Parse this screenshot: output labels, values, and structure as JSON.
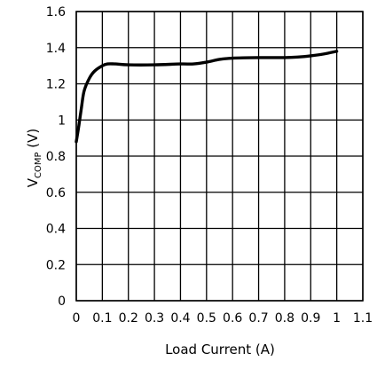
{
  "chart_data": {
    "type": "line",
    "title": "",
    "xlabel": "Load Current (A)",
    "ylabel": {
      "main": "V",
      "subscript": "COMP",
      "unit": " (V)"
    },
    "xlim": [
      0,
      1.1
    ],
    "ylim": [
      0,
      1.6
    ],
    "xticks": [
      0,
      0.1,
      0.2,
      0.3,
      0.4,
      0.5,
      0.6,
      0.7,
      0.8,
      0.9,
      1.0,
      1.1
    ],
    "xtick_labels": [
      "0",
      "0.1",
      "0.2",
      "0.3",
      "0.4",
      "0.5",
      "0.6",
      "0.7",
      "0.8",
      "0.9",
      "1",
      "1.1"
    ],
    "yticks": [
      0,
      0.2,
      0.4,
      0.6,
      0.8,
      1.0,
      1.2,
      1.4,
      1.6
    ],
    "ytick_labels": [
      "0",
      "0.2",
      "0.4",
      "0.6",
      "0.8",
      "1",
      "1.2",
      "1.4",
      "1.6"
    ],
    "grid": true,
    "line_color": "#000000",
    "series": [
      {
        "x": [
          0.0,
          0.01,
          0.02,
          0.03,
          0.05,
          0.07,
          0.1,
          0.12,
          0.15,
          0.2,
          0.3,
          0.4,
          0.45,
          0.5,
          0.55,
          0.6,
          0.7,
          0.8,
          0.85,
          0.9,
          0.95,
          1.0
        ],
        "y": [
          0.88,
          0.97,
          1.07,
          1.16,
          1.23,
          1.27,
          1.3,
          1.31,
          1.31,
          1.305,
          1.305,
          1.31,
          1.31,
          1.32,
          1.335,
          1.342,
          1.345,
          1.345,
          1.348,
          1.355,
          1.365,
          1.38
        ]
      }
    ]
  }
}
